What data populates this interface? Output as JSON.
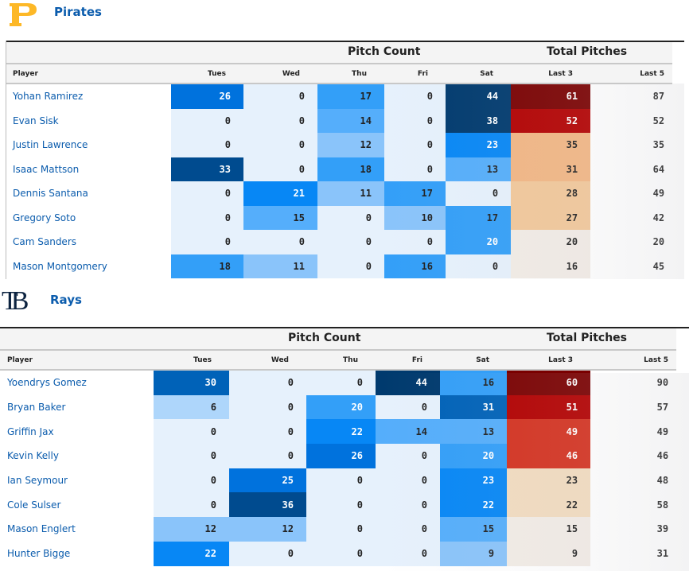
{
  "colors": {
    "team_name": "#0b5cad",
    "pirates_logo": "#fdb827",
    "rays_logo": "#0c2340",
    "scale_blue": [
      "#e6f1fc",
      "#aed6fb",
      "#8ac4fa",
      "#55aefb",
      "#339ff8",
      "#0787f5",
      "#0072dd",
      "#0062b8",
      "#004b8f",
      "#003a6e"
    ],
    "scale_warm": [
      "#f2ece6",
      "#f2dcc0",
      "#f2c89a",
      "#f2b684",
      "#d43220",
      "#b30000",
      "#7a0000"
    ]
  },
  "teams": [
    {
      "name": "Pirates",
      "logo_icon": "pirates-p-logo",
      "group_headers": {
        "pitch_count": "Pitch Count",
        "total_pitches": "Total Pitches"
      },
      "columns": [
        "Player",
        "Tues",
        "Wed",
        "Thu",
        "Fri",
        "Sat",
        "Last 3",
        "Last 5"
      ],
      "rows": [
        {
          "player": "Yohan Ramirez",
          "tues": 26,
          "wed": 0,
          "thu": 17,
          "fri": 0,
          "sat": 44,
          "last3": 61,
          "last5": 87
        },
        {
          "player": "Evan Sisk",
          "tues": 0,
          "wed": 0,
          "thu": 14,
          "fri": 0,
          "sat": 38,
          "last3": 52,
          "last5": 52
        },
        {
          "player": "Justin Lawrence",
          "tues": 0,
          "wed": 0,
          "thu": 12,
          "fri": 0,
          "sat": 23,
          "last3": 35,
          "last5": 35
        },
        {
          "player": "Isaac Mattson",
          "tues": 33,
          "wed": 0,
          "thu": 18,
          "fri": 0,
          "sat": 13,
          "last3": 31,
          "last5": 64
        },
        {
          "player": "Dennis Santana",
          "tues": 0,
          "wed": 21,
          "thu": 11,
          "fri": 17,
          "sat": 0,
          "last3": 28,
          "last5": 49
        },
        {
          "player": "Gregory Soto",
          "tues": 0,
          "wed": 15,
          "thu": 0,
          "fri": 10,
          "sat": 17,
          "last3": 27,
          "last5": 42
        },
        {
          "player": "Cam Sanders",
          "tues": 0,
          "wed": 0,
          "thu": 0,
          "fri": 0,
          "sat": 20,
          "last3": 20,
          "last5": 20
        },
        {
          "player": "Mason Montgomery",
          "tues": 18,
          "wed": 11,
          "thu": 0,
          "fri": 16,
          "sat": 0,
          "last3": 16,
          "last5": 45
        }
      ]
    },
    {
      "name": "Rays",
      "logo_icon": "rays-tb-logo",
      "logo_text": "TB",
      "group_headers": {
        "pitch_count": "Pitch Count",
        "total_pitches": "Total Pitches"
      },
      "columns": [
        "Player",
        "Tues",
        "Wed",
        "Thu",
        "Fri",
        "Sat",
        "Last 3",
        "Last 5"
      ],
      "rows": [
        {
          "player": "Yoendrys Gomez",
          "tues": 30,
          "wed": 0,
          "thu": 0,
          "fri": 44,
          "sat": 16,
          "last3": 60,
          "last5": 90
        },
        {
          "player": "Bryan Baker",
          "tues": 6,
          "wed": 0,
          "thu": 20,
          "fri": 0,
          "sat": 31,
          "last3": 51,
          "last5": 57
        },
        {
          "player": "Griffin Jax",
          "tues": 0,
          "wed": 0,
          "thu": 22,
          "fri": 14,
          "sat": 13,
          "last3": 49,
          "last5": 49
        },
        {
          "player": "Kevin Kelly",
          "tues": 0,
          "wed": 0,
          "thu": 26,
          "fri": 0,
          "sat": 20,
          "last3": 46,
          "last5": 46
        },
        {
          "player": "Ian Seymour",
          "tues": 0,
          "wed": 25,
          "thu": 0,
          "fri": 0,
          "sat": 23,
          "last3": 23,
          "last5": 48
        },
        {
          "player": "Cole Sulser",
          "tues": 0,
          "wed": 36,
          "thu": 0,
          "fri": 0,
          "sat": 22,
          "last3": 22,
          "last5": 58
        },
        {
          "player": "Mason Englert",
          "tues": 12,
          "wed": 12,
          "thu": 0,
          "fri": 0,
          "sat": 15,
          "last3": 15,
          "last5": 39
        },
        {
          "player": "Hunter Bigge",
          "tues": 22,
          "wed": 0,
          "thu": 0,
          "fri": 0,
          "sat": 9,
          "last3": 9,
          "last5": 31
        }
      ]
    }
  ]
}
